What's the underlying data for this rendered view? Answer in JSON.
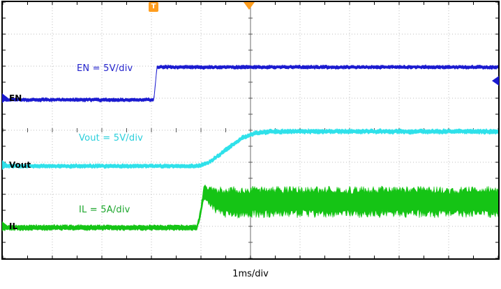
{
  "scope": {
    "trigger_flag": "T",
    "marker_colors": {
      "trigger_orange": "#ff9d1e",
      "en_level_blue": "#1b1bd0"
    }
  },
  "chart_data": {
    "type": "line",
    "subtype": "oscilloscope",
    "xlabel": "1ms/div",
    "x_divisions": 10,
    "y_divisions": 8,
    "x_range_ms": [
      0,
      10
    ],
    "grid": "dotted",
    "legend_position": "inline-annotations",
    "point_format": "[time_ms, level_in_divisions_from_top, noise_half_amplitude_divisions]",
    "series": [
      {
        "name": "EN",
        "label": "EN = 5V/div",
        "scale": "5V/div",
        "color": "#1b1bd0",
        "label_color": "#2323cc",
        "description": "Enable signal, steps low-to-high at trigger",
        "points": [
          [
            0,
            3.05,
            0.06
          ],
          [
            3.05,
            3.05,
            0.06
          ],
          [
            3.11,
            2.03,
            0.06
          ],
          [
            10,
            2.03,
            0.06
          ]
        ]
      },
      {
        "name": "Vout",
        "label": "Vout = 5V/div",
        "scale": "5V/div",
        "color": "#2fe1ea",
        "label_color": "#29cfdb",
        "description": "Output voltage soft-start ramp after enable",
        "points": [
          [
            0,
            5.12,
            0.07
          ],
          [
            3.94,
            5.12,
            0.07
          ],
          [
            4.15,
            5.02,
            0.07
          ],
          [
            4.5,
            4.62,
            0.08
          ],
          [
            4.85,
            4.22,
            0.08
          ],
          [
            5.1,
            4.09,
            0.08
          ],
          [
            5.4,
            4.04,
            0.08
          ],
          [
            10,
            4.04,
            0.08
          ]
        ]
      },
      {
        "name": "IL",
        "label": "IL = 5A/div",
        "scale": "5A/div",
        "color": "#15c415",
        "label_color": "#1ca62c",
        "description": "Inductor current: inrush spike then steady ripple band",
        "points": [
          [
            0,
            7.04,
            0.09
          ],
          [
            3.92,
            7.04,
            0.09
          ],
          [
            3.99,
            6.6,
            0.14
          ],
          [
            4.06,
            5.95,
            0.28
          ],
          [
            4.16,
            6.05,
            0.33
          ],
          [
            4.3,
            6.18,
            0.42
          ],
          [
            4.5,
            6.24,
            0.49
          ],
          [
            10,
            6.24,
            0.49
          ]
        ]
      }
    ]
  }
}
